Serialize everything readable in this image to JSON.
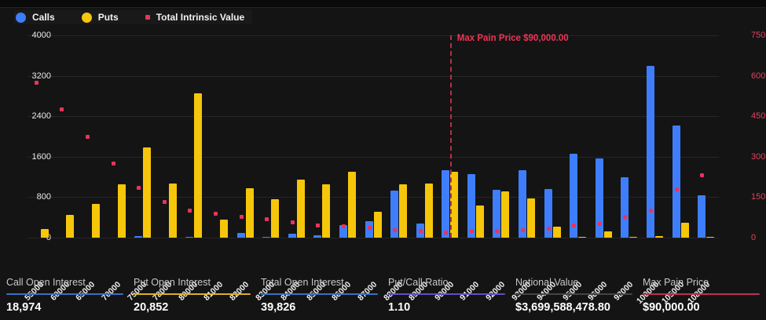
{
  "legend": {
    "items": [
      {
        "label": "Calls",
        "color": "#3e7efc",
        "marker": "circle"
      },
      {
        "label": "Puts",
        "color": "#f6c60a",
        "marker": "circle"
      },
      {
        "label": "Total Intrinsic Value",
        "color": "#e8345c",
        "marker": "square"
      }
    ]
  },
  "chart_data": {
    "type": "bar",
    "categories": [
      "55000",
      "60000",
      "65000",
      "70000",
      "75000",
      "78000",
      "80000",
      "81000",
      "82000",
      "83000",
      "84000",
      "85000",
      "86000",
      "87000",
      "88000",
      "89000",
      "90000",
      "91000",
      "92000",
      "93000",
      "94000",
      "95000",
      "96000",
      "98000",
      "100000",
      "105000",
      "108000"
    ],
    "series": [
      {
        "name": "Calls",
        "type": "bar",
        "axis": "left",
        "color": "#3e7efc",
        "values": [
          0,
          0,
          0,
          0,
          25,
          0,
          10,
          0,
          100,
          10,
          80,
          50,
          250,
          330,
          930,
          280,
          1330,
          1250,
          950,
          1330,
          960,
          1660,
          1570,
          1190,
          3390,
          2220,
          830
        ]
      },
      {
        "name": "Puts",
        "type": "bar",
        "axis": "left",
        "color": "#f6c60a",
        "values": [
          170,
          450,
          670,
          1060,
          1780,
          1070,
          2850,
          350,
          970,
          760,
          1150,
          1060,
          1300,
          510,
          1060,
          1070,
          1310,
          640,
          920,
          780,
          220,
          20,
          120,
          15,
          30,
          290,
          15
        ]
      },
      {
        "name": "Total Intrinsic Value",
        "type": "scatter",
        "axis": "right",
        "color": "#e8345c",
        "unit": "M",
        "values": [
          575,
          475,
          373,
          274,
          184,
          133,
          101,
          89,
          78,
          69,
          57,
          46,
          42,
          35,
          28,
          24,
          20,
          24,
          26,
          28,
          32,
          44,
          51,
          76,
          99,
          178,
          232
        ]
      }
    ],
    "left_axis": {
      "ticks": [
        "0",
        "800",
        "1600",
        "2400",
        "3200",
        "4000"
      ],
      "tick_values": [
        0,
        800,
        1600,
        2400,
        3200,
        4000
      ],
      "max": 4000
    },
    "right_axis": {
      "ticks": [
        "0",
        "150M",
        "300M",
        "450M",
        "600M",
        "750M"
      ],
      "tick_values": [
        0,
        150,
        300,
        450,
        600,
        750
      ],
      "max": 750
    },
    "grid": "horizontal",
    "legend_position": "top-left",
    "annotation": {
      "label": "Max Pain Price $90,000.00",
      "category": "90000",
      "color": "#ef3456"
    }
  },
  "stats": [
    {
      "label": "Call Open Interest",
      "value": "18,974",
      "accent": "#3a6fc4"
    },
    {
      "label": "Put Open Interest",
      "value": "20,852",
      "accent": "#d9b028"
    },
    {
      "label": "Total Open Interest",
      "value": "39,826",
      "accent": "#3a6fc4"
    },
    {
      "label": "Put/Call Ratio",
      "value": "1.10",
      "accent": "#5e51c8"
    },
    {
      "label": "Notional Value",
      "value": "$3,699,588,478.80",
      "accent": "#454545"
    },
    {
      "label": "Max Pain Price",
      "value": "$90,000.00",
      "accent": "#bf3056"
    }
  ]
}
